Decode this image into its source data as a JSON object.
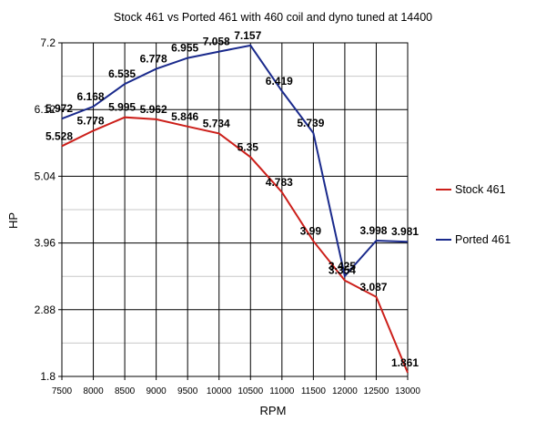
{
  "chart_data": {
    "type": "line",
    "title": "Stock 461 vs Ported 461 with 460 coil and dyno tuned at 14400",
    "xlabel": "RPM",
    "ylabel": "HP",
    "x": [
      7500,
      8000,
      8500,
      9000,
      9500,
      10000,
      10500,
      11000,
      11500,
      12000,
      12500,
      13000
    ],
    "xlim": [
      7500,
      13000
    ],
    "ylim": [
      1.8,
      7.2
    ],
    "yticks": [
      1.8,
      2.88,
      3.96,
      5.04,
      6.12,
      7.2
    ],
    "ytick_labels": [
      "1.8",
      "2.88",
      "3.96",
      "5.04",
      "6.12",
      "7.2"
    ],
    "xtick_labels": [
      "7500",
      "8000",
      "8500",
      "9000",
      "9500",
      "10000",
      "10500",
      "11000",
      "11500",
      "12000",
      "12500",
      "13000"
    ],
    "grid": true,
    "legend_position": "right",
    "series": [
      {
        "name": "Stock 461",
        "color": "#cc1f1a",
        "values": [
          5.528,
          5.778,
          5.995,
          5.962,
          5.846,
          5.734,
          5.35,
          4.783,
          3.99,
          3.354,
          3.087,
          1.861
        ],
        "labels": [
          "5.528",
          "5.778",
          "5.995",
          "5.962",
          "5.846",
          "5.734",
          "5.35",
          "4.783",
          "3.99",
          "3.354",
          "3.087",
          "1.861"
        ]
      },
      {
        "name": "Ported 461",
        "color": "#1a2a8c",
        "values": [
          5.972,
          6.168,
          6.535,
          6.778,
          6.955,
          7.058,
          7.157,
          6.419,
          5.739,
          3.425,
          3.998,
          3.981
        ],
        "labels": [
          "5.972",
          "6.168",
          "6.535",
          "6.778",
          "6.955",
          "7.058",
          "7.157",
          "6.419",
          "5.739",
          "3.425",
          "3.998",
          "3.981"
        ]
      }
    ]
  }
}
